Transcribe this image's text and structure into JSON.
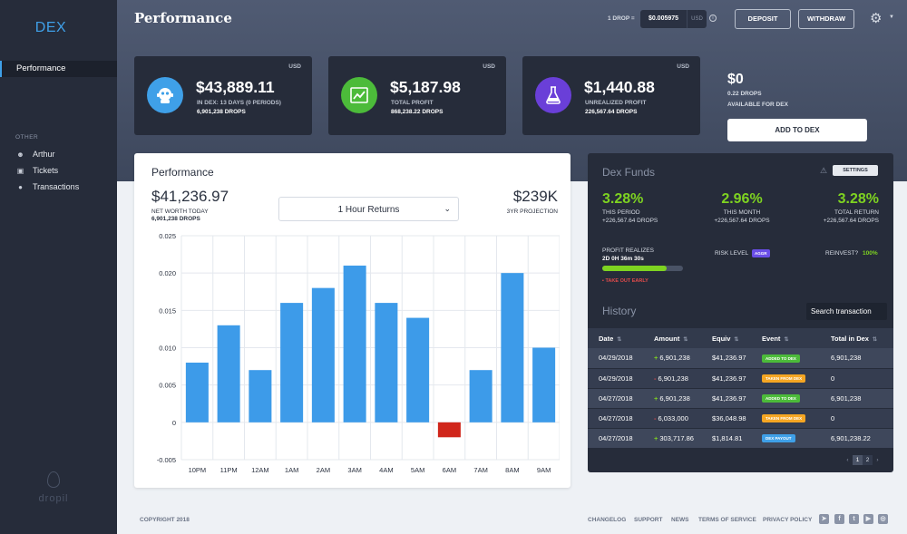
{
  "sidebar": {
    "brand": "DEX",
    "active_item": "Performance",
    "section_label": "OTHER",
    "items": [
      {
        "label": "Arthur",
        "icon": "user-icon"
      },
      {
        "label": "Tickets",
        "icon": "ticket-icon"
      },
      {
        "label": "Transactions",
        "icon": "drop-icon"
      }
    ],
    "logo_text": "dropil"
  },
  "header": {
    "title": "Performance",
    "rate_label": "1 DROP =",
    "rate_value": "$0.005975",
    "rate_currency": "USD",
    "deposit_label": "DEPOSIT",
    "withdraw_label": "WITHDRAW"
  },
  "stats": [
    {
      "currency": "USD",
      "amount": "$43,889.11",
      "line1": "IN DEX: 13 DAYS (0 PERIODS)",
      "line2": "6,901,238 DROPS",
      "color": "#3fa0e8",
      "icon": "robot-icon"
    },
    {
      "currency": "USD",
      "amount": "$5,187.98",
      "line1": "TOTAL PROFIT",
      "line2": "868,238.22 DROPS",
      "color": "#4cbb3a",
      "icon": "trend-chart-icon"
    },
    {
      "currency": "USD",
      "amount": "$1,440.88",
      "line1": "UNREALIZED PROFIT",
      "line2": "226,567.64 DROPS",
      "color": "#6a3fd8",
      "icon": "flask-icon"
    }
  ],
  "available": {
    "amount": "$0",
    "drops": "0.22 DROPS",
    "label": "AVAILABLE FOR DEX",
    "button": "ADD TO DEX"
  },
  "performance": {
    "title": "Performance",
    "net_worth": "$41,236.97",
    "net_worth_label": "NET WORTH TODAY",
    "net_worth_drops": "6,901,238 DROPS",
    "select_value": "1 Hour Returns",
    "projection": "$239K",
    "projection_label": "3YR PROJECTION"
  },
  "chart_data": {
    "type": "bar",
    "categories": [
      "10PM",
      "11PM",
      "12AM",
      "1AM",
      "2AM",
      "3AM",
      "4AM",
      "5AM",
      "6AM",
      "7AM",
      "8AM",
      "9AM"
    ],
    "values": [
      0.008,
      0.013,
      0.007,
      0.016,
      0.018,
      0.021,
      0.016,
      0.014,
      -0.002,
      0.007,
      0.02,
      0.01
    ],
    "ylim": [
      -0.005,
      0.025
    ],
    "yticks": [
      "-0.005",
      "0",
      "0.005",
      "0.010",
      "0.015",
      "0.020",
      "0.025"
    ],
    "positive_color": "#3d9be9",
    "negative_color": "#d0261b",
    "grid": true
  },
  "funds": {
    "title": "Dex Funds",
    "settings_label": "SETTINGS",
    "stats": [
      {
        "pct": "3.28%",
        "label": "THIS PERIOD",
        "value": "+226,567.64 DROPS"
      },
      {
        "pct": "2.96%",
        "label": "THIS MONTH",
        "value": "+226,567.64 DROPS"
      },
      {
        "pct": "3.28%",
        "label": "TOTAL RETURN",
        "value": "+226,567.64 DROPS"
      }
    ],
    "profit_label": "PROFIT REALIZES",
    "profit_time": "2D 0H 36m 30s",
    "profit_progress": 0.8,
    "take_out": "TAKE OUT EARLY",
    "risk_label": "RISK LEVEL",
    "risk_value": "AGGR",
    "reinvest_label": "REINVEST?",
    "reinvest_value": "100%"
  },
  "history": {
    "title": "History",
    "search_placeholder": "Search transaction",
    "columns": [
      "Date",
      "Amount",
      "Equiv",
      "Event",
      "Total in Dex"
    ],
    "rows": [
      {
        "date": "04/29/2018",
        "sign": "+",
        "amount": "6,901,238",
        "equiv": "$41,236.97",
        "event": "ADDED TO DEX",
        "event_color": "#4cbb3a",
        "total": "6,901,238"
      },
      {
        "date": "04/29/2018",
        "sign": "-",
        "amount": "6,901,238",
        "equiv": "$41,236.97",
        "event": "TAKEN FROM DEX",
        "event_color": "#f5a623",
        "total": "0"
      },
      {
        "date": "04/27/2018",
        "sign": "+",
        "amount": "6,901,238",
        "equiv": "$41,236.97",
        "event": "ADDED TO DEX",
        "event_color": "#4cbb3a",
        "total": "6,901,238"
      },
      {
        "date": "04/27/2018",
        "sign": "-",
        "amount": "6,033,000",
        "equiv": "$36,048.98",
        "event": "TAKEN FROM DEX",
        "event_color": "#f5a623",
        "total": "0"
      },
      {
        "date": "04/27/2018",
        "sign": "+",
        "amount": "303,717.86",
        "equiv": "$1,814.81",
        "event": "DEX PAYOUT",
        "event_color": "#3fa0e8",
        "total": "6,901,238.22"
      }
    ],
    "pages": [
      "1",
      "2"
    ]
  },
  "footer": {
    "copyright": "COPYRIGHT 2018",
    "links": [
      "CHANGELOG",
      "SUPPORT",
      "NEWS",
      "TERMS OF SERVICE",
      "PRIVACY POLICY"
    ],
    "social": [
      {
        "icon": "telegram-icon",
        "glyph": "➤"
      },
      {
        "icon": "facebook-icon",
        "glyph": "f"
      },
      {
        "icon": "twitter-icon",
        "glyph": "t"
      },
      {
        "icon": "youtube-icon",
        "glyph": "▶"
      },
      {
        "icon": "instagram-icon",
        "glyph": "◎"
      }
    ]
  }
}
